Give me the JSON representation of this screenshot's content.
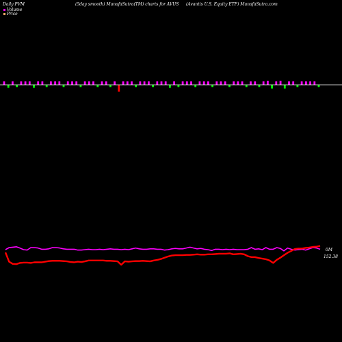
{
  "header": {
    "left": "Daily PVM",
    "center": "(5day smooth) MunafaSutra(TM) charts for AVUS",
    "right": "(Avantis U.S. Equity ETF) MunafaSutra.com"
  },
  "legend": [
    {
      "label": "Volume",
      "color": "#ff00ff"
    },
    {
      "label": "Price",
      "color": "#ffaa66"
    }
  ],
  "colors": {
    "background": "#000000",
    "volume_up": "#ff00ff",
    "volume_down": "#00ff00",
    "volume_spike": "#ff0000",
    "baseline": "#ffffff",
    "volume_line": "#ff00ff",
    "price_line": "#ff0000"
  },
  "chart_data": [
    {
      "type": "bar",
      "name": "pvm-bars",
      "baseline": 0,
      "ylim": [
        -10,
        10
      ],
      "values": [
        5,
        -4,
        5,
        -3,
        5,
        5,
        5,
        -4,
        5,
        5,
        -3,
        5,
        5,
        5,
        -3,
        5,
        5,
        5,
        -3,
        5,
        5,
        5,
        -3,
        5,
        5,
        -3,
        5,
        -9,
        5,
        5,
        5,
        -3,
        5,
        5,
        5,
        -3,
        5,
        5,
        5,
        -4,
        5,
        -3,
        5,
        5,
        5,
        -3,
        5,
        5,
        5,
        -3,
        5,
        5,
        5,
        -3,
        5,
        5,
        5,
        -3,
        5,
        5,
        -3,
        5,
        6,
        -5,
        5,
        6,
        -5,
        5,
        5,
        -3,
        5,
        5,
        5,
        5,
        -3
      ],
      "colors": [
        "up",
        "down",
        "up",
        "down",
        "up",
        "up",
        "up",
        "down",
        "up",
        "up",
        "down",
        "up",
        "up",
        "up",
        "down",
        "up",
        "up",
        "up",
        "down",
        "up",
        "up",
        "up",
        "down",
        "up",
        "up",
        "down",
        "up",
        "spike",
        "up",
        "up",
        "up",
        "down",
        "up",
        "up",
        "up",
        "down",
        "up",
        "up",
        "up",
        "down",
        "up",
        "down",
        "up",
        "up",
        "up",
        "down",
        "up",
        "up",
        "up",
        "down",
        "up",
        "up",
        "up",
        "down",
        "up",
        "up",
        "up",
        "down",
        "up",
        "up",
        "down",
        "up",
        "up",
        "down",
        "up",
        "up",
        "down",
        "up",
        "up",
        "down",
        "up",
        "up",
        "up",
        "up",
        "down"
      ]
    },
    {
      "type": "line",
      "series": [
        {
          "role": "volume",
          "values": [
            50,
            55,
            56,
            57,
            54,
            50,
            49,
            55,
            55,
            54,
            51,
            51,
            52,
            55,
            55,
            54,
            52,
            51,
            51,
            51,
            49,
            49,
            50,
            51,
            50,
            50,
            51,
            50,
            51,
            52,
            51,
            51,
            50,
            51,
            50,
            52,
            54,
            52,
            51,
            51,
            52,
            52,
            51,
            51,
            49,
            50,
            52,
            53,
            52,
            52,
            54,
            56,
            54,
            52,
            53,
            51,
            50,
            48,
            51,
            51,
            50,
            51,
            50,
            51,
            50,
            50,
            50,
            51,
            55,
            51,
            52,
            50,
            55,
            51,
            51,
            55,
            53,
            47,
            54,
            51,
            49,
            50,
            51,
            49,
            52,
            55,
            54,
            51
          ]
        },
        {
          "role": "price",
          "values": [
            62,
            32,
            25,
            24,
            28,
            29,
            29,
            28,
            30,
            30,
            30,
            32,
            34,
            35,
            35,
            35,
            34,
            33,
            31,
            30,
            32,
            31,
            33,
            36,
            36,
            36,
            36,
            36,
            35,
            35,
            34,
            33,
            22,
            33,
            32,
            33,
            34,
            34,
            35,
            34,
            33,
            36,
            38,
            41,
            45,
            49,
            52,
            53,
            53,
            53,
            54,
            54,
            55,
            56,
            55,
            55,
            56,
            56,
            57,
            58,
            58,
            58,
            59,
            56,
            57,
            58,
            56,
            50,
            47,
            47,
            44,
            42,
            40,
            36,
            28,
            38,
            45,
            53,
            61,
            67,
            73,
            75,
            75,
            77,
            78,
            80,
            81,
            83
          ],
          "label": "152.38"
        }
      ],
      "volume_label": "0M"
    }
  ]
}
